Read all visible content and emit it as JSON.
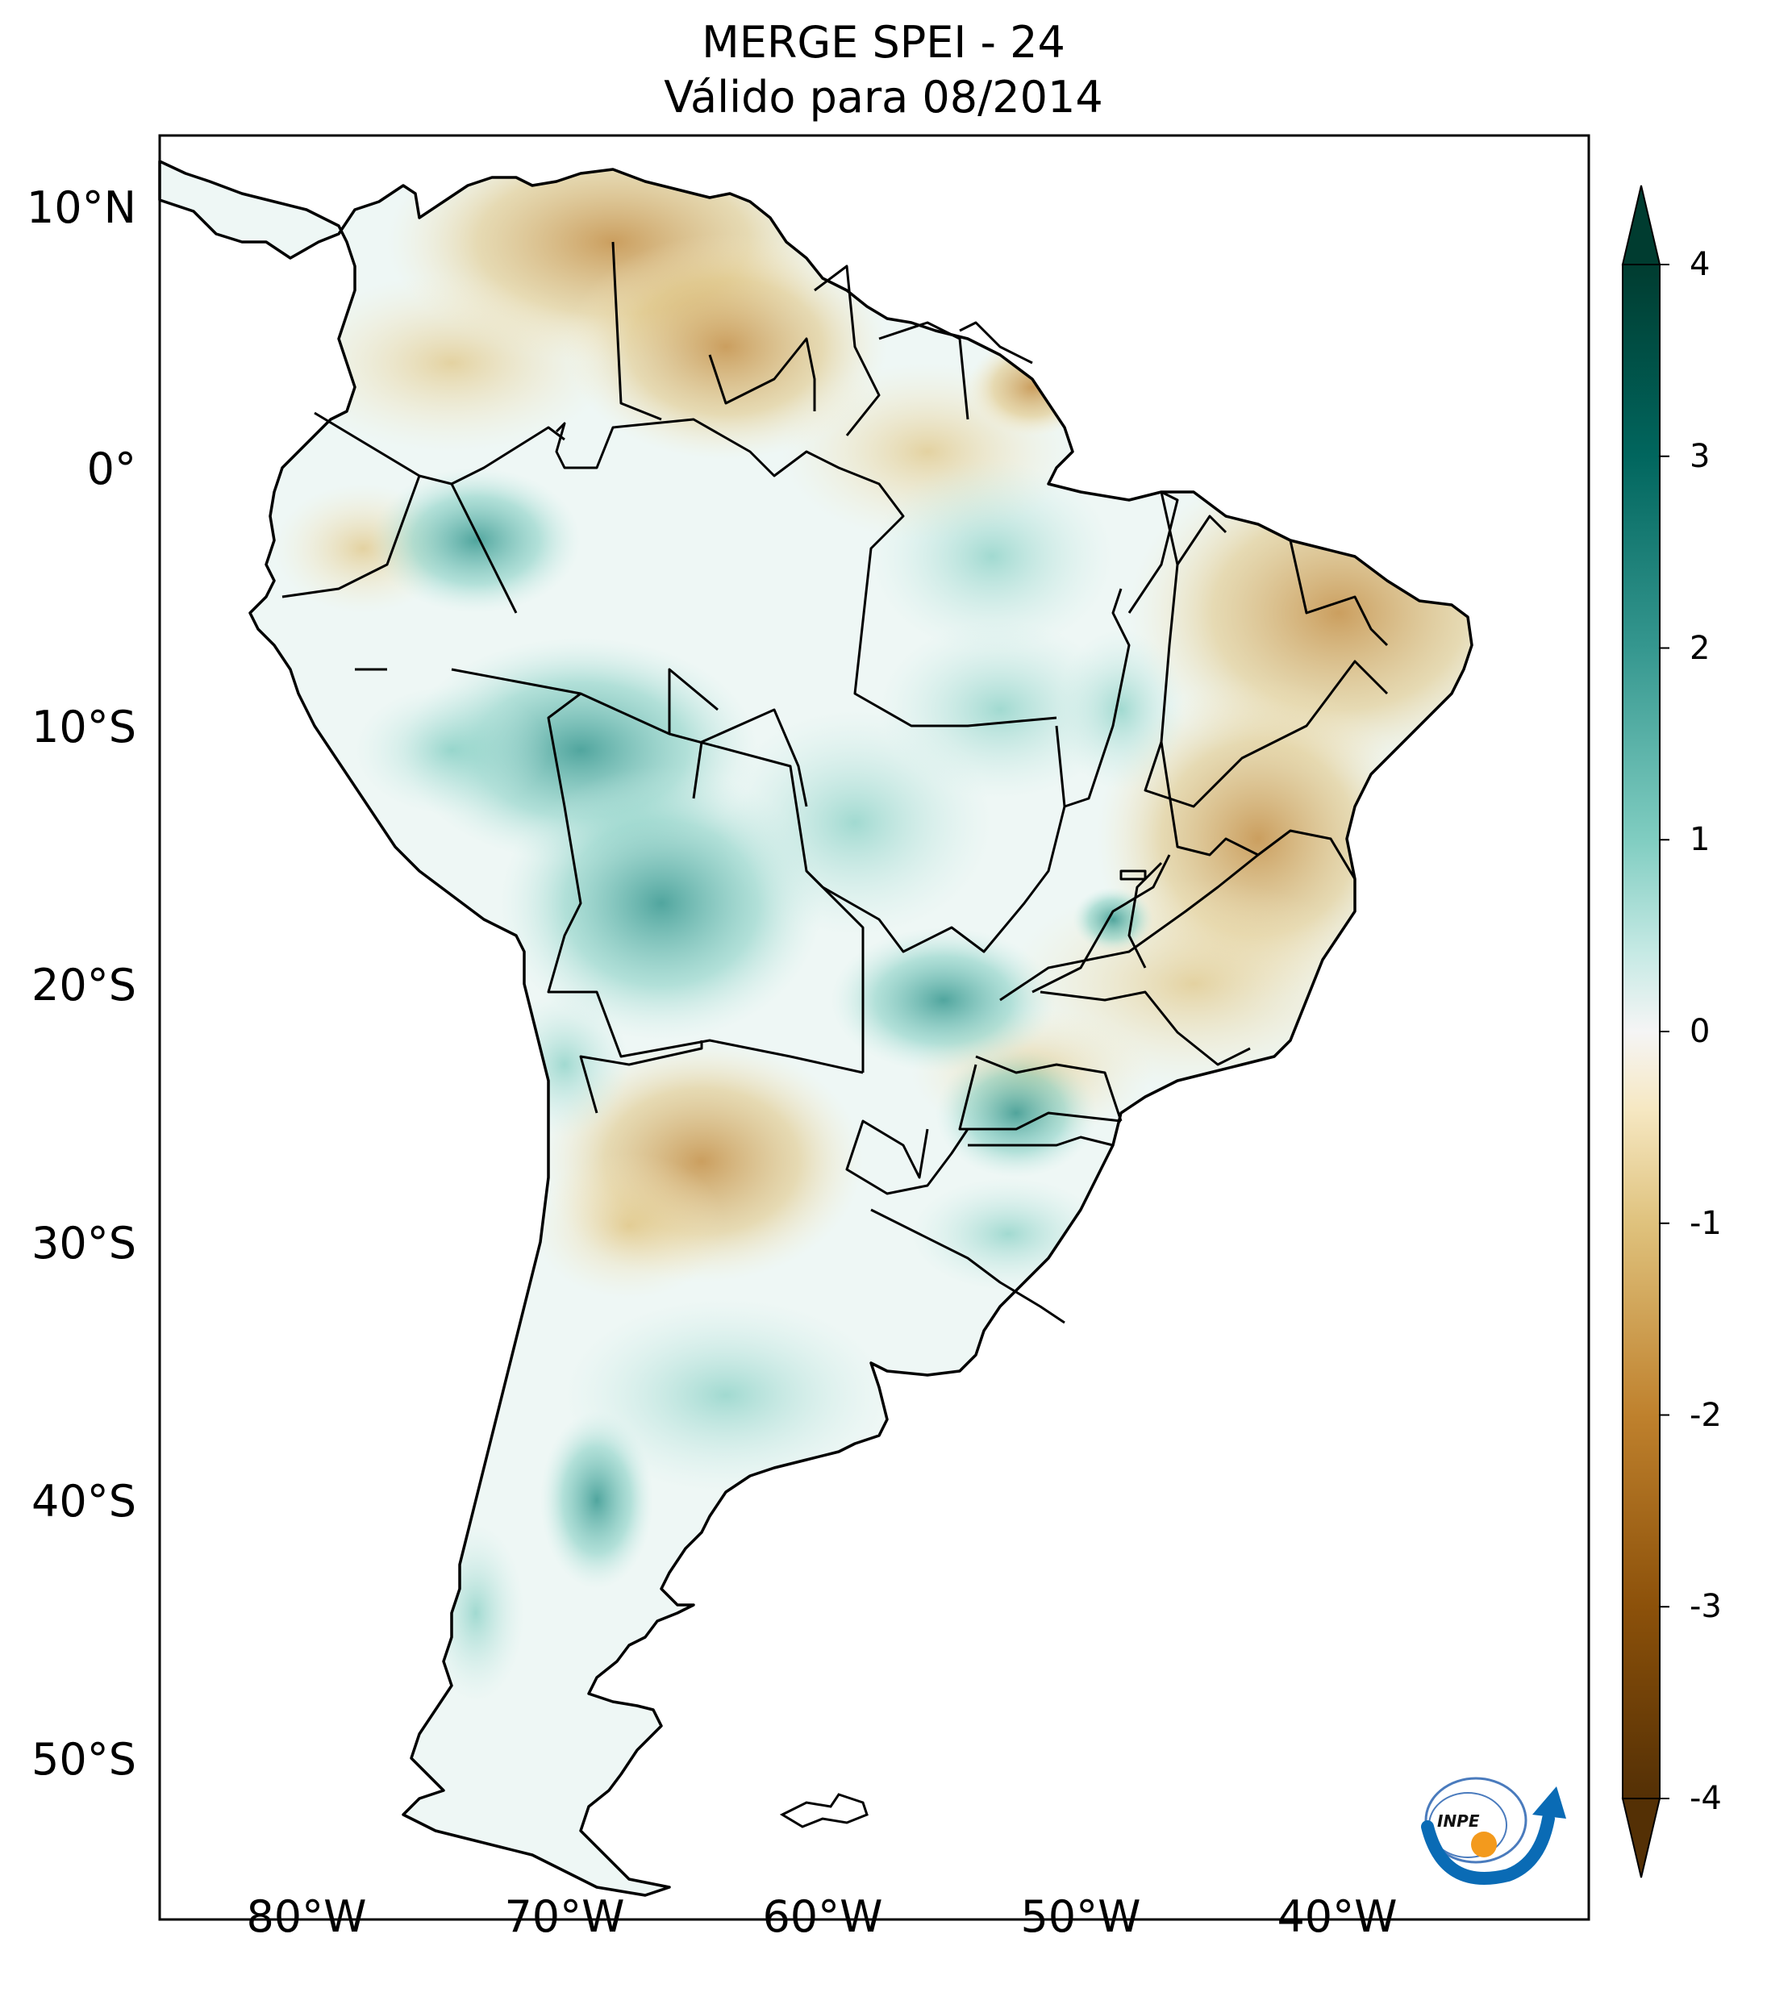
{
  "title": {
    "line1": "MERGE   SPEI - 24",
    "line2": "Válido para 08/2014"
  },
  "axes": {
    "lat_ticks": [
      "10°N",
      "0°",
      "10°S",
      "20°S",
      "30°S",
      "40°S",
      "50°S"
    ],
    "lon_ticks": [
      "80°W",
      "70°W",
      "60°W",
      "50°W",
      "40°W"
    ],
    "lon_range": [
      -85,
      -30
    ],
    "lat_range": [
      -57,
      13
    ]
  },
  "colorbar": {
    "ticks": [
      "4",
      "3",
      "2",
      "1",
      "0",
      "-1",
      "-2",
      "-3",
      "-4"
    ],
    "range": [
      -4,
      4
    ],
    "extend": "both",
    "colormap": "BrBG",
    "colors": {
      "neg4": "#543005",
      "neg3": "#8c510a",
      "neg2": "#bf812d",
      "neg1": "#dfc27d",
      "neg05": "#f6e8c3",
      "zero": "#f5f5f5",
      "pos05": "#c7eae5",
      "pos1": "#80cdc1",
      "pos2": "#35978f",
      "pos3": "#01665e",
      "pos4": "#003c30"
    }
  },
  "logo": {
    "text": "INPE",
    "icon": "inpe-logo-icon"
  }
}
